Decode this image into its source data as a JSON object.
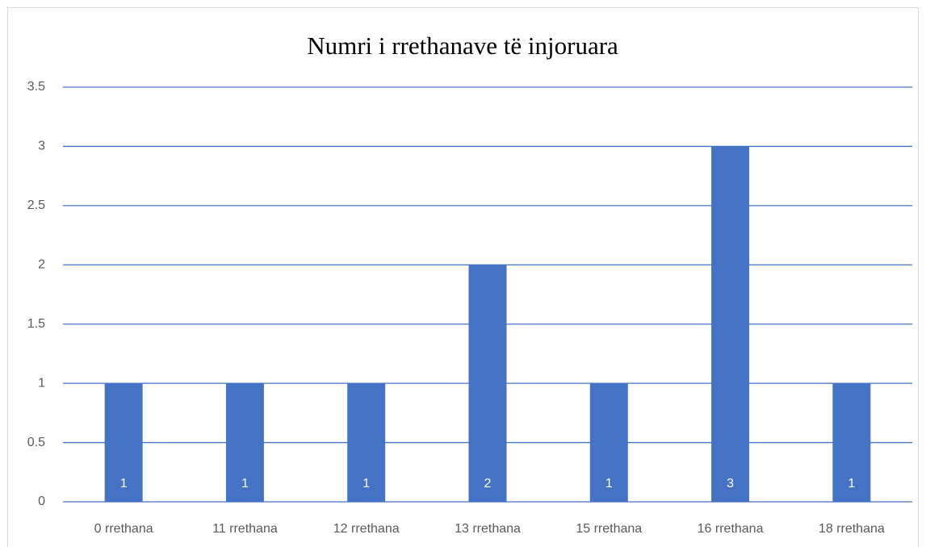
{
  "chart_data": {
    "type": "bar",
    "title": "Numri i rrethanave të injoruara",
    "categories": [
      "0 rrethana",
      "11 rrethana",
      "12 rrethana",
      "13 rrethana",
      "15 rrethana",
      "16 rrethana",
      "18 rrethana"
    ],
    "values": [
      1,
      1,
      1,
      2,
      1,
      3,
      1
    ],
    "color": "#4472c4",
    "ylim": [
      0,
      3.5
    ],
    "yticks": [
      0,
      0.5,
      1,
      1.5,
      2,
      2.5,
      3,
      3.5
    ],
    "grid": true,
    "grid_color": "#4472c4",
    "data_labels": true
  }
}
